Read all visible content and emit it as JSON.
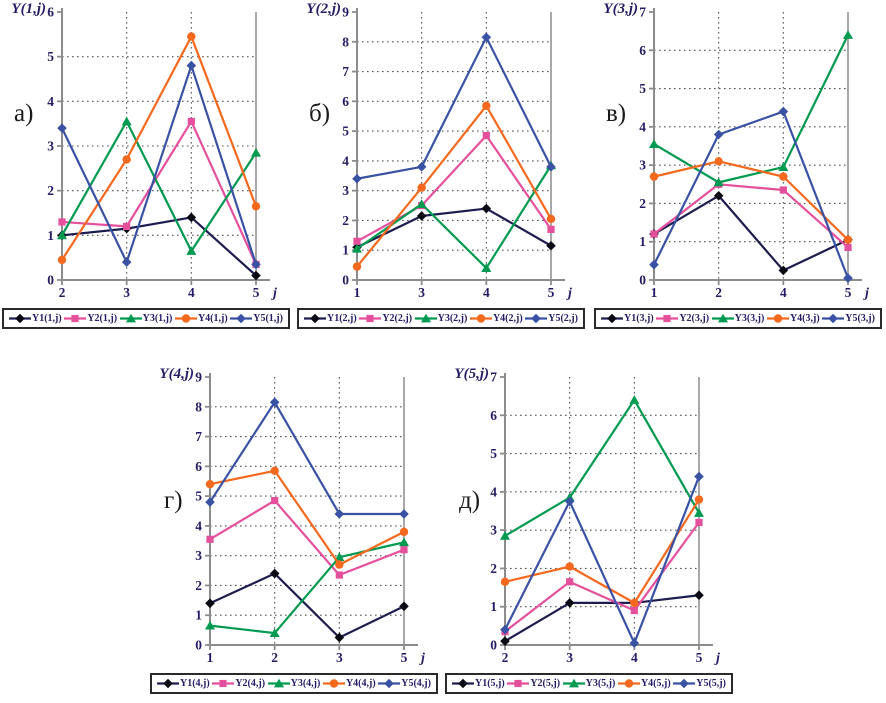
{
  "figure": {
    "background": "#ffffff"
  },
  "colors": {
    "axis": "#8c8c8c",
    "grid": "#555555",
    "tick_text": "#251d66",
    "legend_text": "#251d66",
    "legend_border": "#2a2a2a",
    "letter_text": "#1a1a1a"
  },
  "chart_data": [
    {
      "type": "line",
      "letter": "а)",
      "title": "Y(1,j)",
      "xlabel": "j",
      "ylim": [
        0,
        6
      ],
      "grid": true,
      "legend_position": "bottom",
      "x": [
        2,
        3,
        4,
        5
      ],
      "series": [
        {
          "name": "Y1(1,j)",
          "marker": "diamond",
          "color": "#1d1d4f",
          "marker_color": "#0a0a14",
          "values": [
            1.0,
            1.15,
            1.4,
            0.1
          ]
        },
        {
          "name": "Y2(1,j)",
          "marker": "square",
          "color": "#e5509c",
          "values": [
            1.3,
            1.2,
            3.55,
            0.35
          ]
        },
        {
          "name": "Y3(1,j)",
          "marker": "triangle",
          "color": "#009a50",
          "values": [
            1.0,
            3.55,
            0.65,
            2.85
          ]
        },
        {
          "name": "Y4(1,j)",
          "marker": "circle",
          "color": "#f4691e",
          "values": [
            0.45,
            2.7,
            5.45,
            1.65
          ]
        },
        {
          "name": "Y5(1,j)",
          "marker": "diamond",
          "color": "#3a52a4",
          "values": [
            3.4,
            0.4,
            4.8,
            0.35
          ]
        }
      ]
    },
    {
      "type": "line",
      "letter": "б)",
      "title": "Y(2,j)",
      "xlabel": "j",
      "ylim": [
        0,
        9
      ],
      "grid": true,
      "legend_position": "bottom",
      "x": [
        1,
        3,
        4,
        5
      ],
      "series": [
        {
          "name": "Y1(2,j)",
          "marker": "diamond",
          "color": "#1d1d4f",
          "marker_color": "#0a0a14",
          "values": [
            1.1,
            2.15,
            2.4,
            1.15
          ]
        },
        {
          "name": "Y2(2,j)",
          "marker": "square",
          "color": "#e5509c",
          "values": [
            1.3,
            2.5,
            4.85,
            1.7
          ]
        },
        {
          "name": "Y3(2,j)",
          "marker": "triangle",
          "color": "#009a50",
          "values": [
            1.05,
            2.55,
            0.4,
            3.85
          ]
        },
        {
          "name": "Y4(2,j)",
          "marker": "circle",
          "color": "#f4691e",
          "values": [
            0.45,
            3.1,
            5.85,
            2.05
          ]
        },
        {
          "name": "Y5(2,j)",
          "marker": "diamond",
          "color": "#3a52a4",
          "values": [
            3.4,
            3.8,
            8.15,
            3.8
          ]
        }
      ]
    },
    {
      "type": "line",
      "letter": "в)",
      "title": "Y(3,j)",
      "xlabel": "j",
      "ylim": [
        0,
        7
      ],
      "grid": true,
      "legend_position": "bottom",
      "x": [
        1,
        2,
        4,
        5
      ],
      "series": [
        {
          "name": "Y1(3,j)",
          "marker": "diamond",
          "color": "#1d1d4f",
          "marker_color": "#0a0a14",
          "values": [
            1.2,
            2.2,
            0.25,
            1.05
          ]
        },
        {
          "name": "Y2(3,j)",
          "marker": "square",
          "color": "#e5509c",
          "values": [
            1.2,
            2.5,
            2.35,
            0.85
          ]
        },
        {
          "name": "Y3(3,j)",
          "marker": "triangle",
          "color": "#009a50",
          "values": [
            3.55,
            2.55,
            2.95,
            6.4
          ]
        },
        {
          "name": "Y4(3,j)",
          "marker": "circle",
          "color": "#f4691e",
          "values": [
            2.7,
            3.1,
            2.7,
            1.05
          ]
        },
        {
          "name": "Y5(3,j)",
          "marker": "diamond",
          "color": "#3a52a4",
          "values": [
            0.4,
            3.8,
            4.4,
            0.05
          ]
        }
      ]
    },
    {
      "type": "line",
      "letter": "г)",
      "title": "Y(4,j)",
      "xlabel": "j",
      "ylim": [
        0,
        9
      ],
      "grid": true,
      "legend_position": "bottom",
      "x": [
        1,
        2,
        3,
        5
      ],
      "series": [
        {
          "name": "Y1(4,j)",
          "marker": "diamond",
          "color": "#1d1d4f",
          "marker_color": "#0a0a14",
          "values": [
            1.4,
            2.4,
            0.25,
            1.3
          ]
        },
        {
          "name": "Y2(4,j)",
          "marker": "square",
          "color": "#e5509c",
          "values": [
            3.55,
            4.85,
            2.35,
            3.2
          ]
        },
        {
          "name": "Y3(4,j)",
          "marker": "triangle",
          "color": "#009a50",
          "values": [
            0.65,
            0.4,
            2.95,
            3.45
          ]
        },
        {
          "name": "Y4(4,j)",
          "marker": "circle",
          "color": "#f4691e",
          "values": [
            5.4,
            5.85,
            2.7,
            3.8
          ]
        },
        {
          "name": "Y5(4,j)",
          "marker": "diamond",
          "color": "#3a52a4",
          "values": [
            4.8,
            8.15,
            4.4,
            4.4
          ]
        }
      ]
    },
    {
      "type": "line",
      "letter": "д)",
      "title": "Y(5,j)",
      "xlabel": "j",
      "ylim": [
        0,
        7
      ],
      "grid": true,
      "legend_position": "bottom",
      "x": [
        2,
        3,
        4,
        5
      ],
      "series": [
        {
          "name": "Y1(5,j)",
          "marker": "diamond",
          "color": "#1d1d4f",
          "marker_color": "#0a0a14",
          "values": [
            0.1,
            1.1,
            1.1,
            1.3
          ]
        },
        {
          "name": "Y2(5,j)",
          "marker": "square",
          "color": "#e5509c",
          "values": [
            0.35,
            1.65,
            0.9,
            3.2
          ]
        },
        {
          "name": "Y3(5,j)",
          "marker": "triangle",
          "color": "#009a50",
          "values": [
            2.85,
            3.85,
            6.4,
            3.45
          ]
        },
        {
          "name": "Y4(5,j)",
          "marker": "circle",
          "color": "#f4691e",
          "values": [
            1.65,
            2.05,
            1.1,
            3.8
          ]
        },
        {
          "name": "Y5(5,j)",
          "marker": "diamond",
          "color": "#3a52a4",
          "values": [
            0.4,
            3.75,
            0.05,
            4.4
          ]
        }
      ]
    }
  ]
}
